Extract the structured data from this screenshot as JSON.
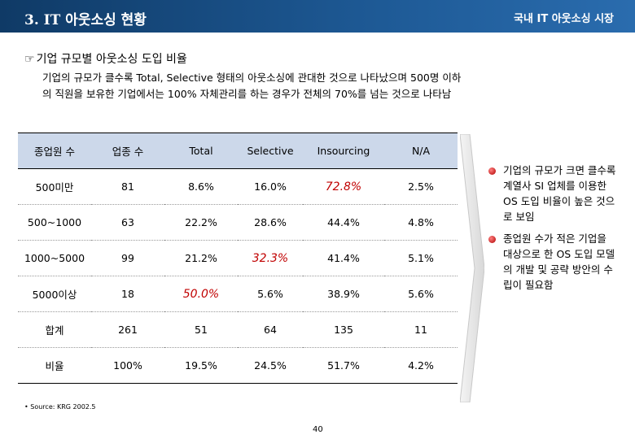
{
  "header": {
    "section_title": "3. IT 아웃소싱 현황",
    "right_title": "국내 IT 아웃소싱 시장"
  },
  "subtitle": "기업 규모별 아웃소싱 도입 비율",
  "description": [
    "기업의 규모가 클수록 Total, Selective 형태의 아웃소싱에 관대한 것으로 나타났으며 500명 이하",
    "의 직원을 보유한 기업에서는 100% 자체관리를 하는 경우가 전체의 70%를 넘는 것으로 나타남"
  ],
  "table": {
    "headers": [
      "종업원 수",
      "업종 수",
      "Total",
      "Selective",
      "Insourcing",
      "N/A"
    ],
    "rows": [
      [
        "500미만",
        "81",
        "8.6%",
        "16.0%",
        "72.8%",
        "2.5%"
      ],
      [
        "500~1000",
        "63",
        "22.2%",
        "28.6%",
        "44.4%",
        "4.8%"
      ],
      [
        "1000~5000",
        "99",
        "21.2%",
        "32.3%",
        "41.4%",
        "5.1%"
      ],
      [
        "5000이상",
        "18",
        "50.0%",
        "5.6%",
        "38.9%",
        "5.6%"
      ],
      [
        "합계",
        "261",
        "51",
        "64",
        "135",
        "11"
      ],
      [
        "비율",
        "100%",
        "19.5%",
        "24.5%",
        "51.7%",
        "4.2%"
      ]
    ]
  },
  "notes": [
    "기업의 규모가 크면 클수록 계열사 SI 업체를 이용한 OS 도입 비율이 높은 것으로 보임",
    "종업원 수가 적은 기업을 대상으로 한 OS 도입 모델의 개발 및 공략 방안의 수립이 필요함"
  ],
  "source": "• Source: KRG 2002.5",
  "page_number": "40",
  "colors": {
    "header_bg": "#1e5a96",
    "table_header_bg": "#ccd8ea",
    "highlight": "#c00000"
  }
}
